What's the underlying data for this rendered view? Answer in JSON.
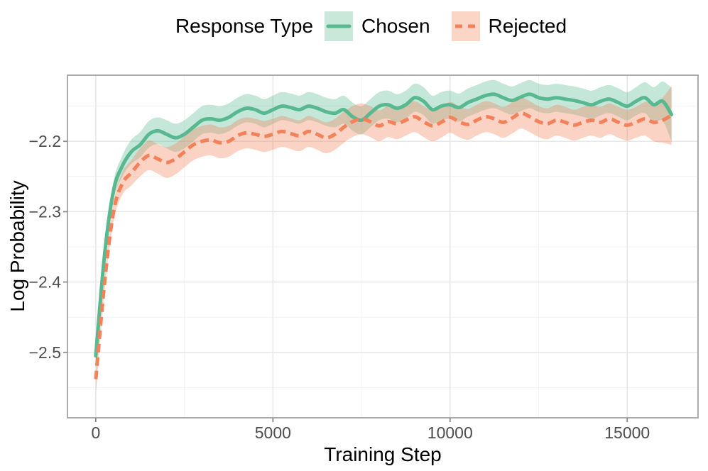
{
  "legend": {
    "title": "Response Type",
    "items": [
      {
        "label": "Chosen",
        "line_color": "#58B991",
        "band_color": "#C9E8DA",
        "dash": "solid"
      },
      {
        "label": "Rejected",
        "line_color": "#F3815A",
        "band_color": "#FBD6C6",
        "dash": "dashed"
      }
    ]
  },
  "axes": {
    "x": {
      "title": "Training Step",
      "ticks": [
        {
          "v": 0,
          "label": "0"
        },
        {
          "v": 5000,
          "label": "5000"
        },
        {
          "v": 10000,
          "label": "10000"
        },
        {
          "v": 15000,
          "label": "15000"
        }
      ],
      "minor": [
        2500,
        7500,
        12500
      ]
    },
    "y": {
      "title": "Log Probability",
      "ticks": [
        {
          "v": -2.2,
          "label": "−2.2"
        },
        {
          "v": -2.3,
          "label": "−2.3"
        },
        {
          "v": -2.4,
          "label": "−2.4"
        },
        {
          "v": -2.5,
          "label": "−2.5"
        }
      ],
      "minor": [
        -2.15,
        -2.25,
        -2.35,
        -2.45,
        -2.55
      ]
    }
  },
  "chart_data": {
    "type": "line",
    "title": "",
    "xlabel": "Training Step",
    "ylabel": "Log Probability",
    "legend_title": "Response Type",
    "legend_position": "top",
    "grid": true,
    "xlim": [
      -800,
      17000
    ],
    "ylim": [
      -2.593,
      -2.106
    ],
    "x": [
      0,
      250,
      500,
      750,
      1000,
      1250,
      1500,
      1750,
      2000,
      2250,
      2500,
      2750,
      3000,
      3250,
      3500,
      3750,
      4000,
      4250,
      4500,
      4750,
      5000,
      5250,
      5500,
      5750,
      6000,
      6250,
      6500,
      6750,
      7000,
      7250,
      7500,
      7750,
      8000,
      8250,
      8500,
      8750,
      9000,
      9250,
      9500,
      9750,
      10000,
      10250,
      10500,
      10750,
      11000,
      11250,
      11500,
      11750,
      12000,
      12250,
      12500,
      12750,
      13000,
      13250,
      13500,
      13750,
      14000,
      14250,
      14500,
      14750,
      15000,
      15250,
      15500,
      15750,
      16000,
      16250
    ],
    "series": [
      {
        "name": "Chosen",
        "color": "#58B991",
        "band_alpha": 0.35,
        "style": "solid",
        "dasharray": "",
        "values": [
          -2.505,
          -2.36,
          -2.27,
          -2.235,
          -2.215,
          -2.205,
          -2.19,
          -2.185,
          -2.19,
          -2.195,
          -2.19,
          -2.18,
          -2.17,
          -2.168,
          -2.17,
          -2.166,
          -2.158,
          -2.153,
          -2.155,
          -2.16,
          -2.155,
          -2.15,
          -2.152,
          -2.155,
          -2.15,
          -2.153,
          -2.158,
          -2.16,
          -2.155,
          -2.165,
          -2.17,
          -2.16,
          -2.15,
          -2.148,
          -2.153,
          -2.148,
          -2.138,
          -2.143,
          -2.155,
          -2.15,
          -2.148,
          -2.152,
          -2.145,
          -2.14,
          -2.135,
          -2.133,
          -2.138,
          -2.142,
          -2.137,
          -2.133,
          -2.138,
          -2.14,
          -2.138,
          -2.14,
          -2.142,
          -2.145,
          -2.148,
          -2.143,
          -2.14,
          -2.145,
          -2.15,
          -2.143,
          -2.138,
          -2.148,
          -2.143,
          -2.162
        ],
        "ci_halfwidth": [
          0.012,
          0.01,
          0.013,
          0.015,
          0.017,
          0.018,
          0.019,
          0.019,
          0.02,
          0.02,
          0.02,
          0.02,
          0.02,
          0.02,
          0.02,
          0.02,
          0.02,
          0.02,
          0.02,
          0.02,
          0.02,
          0.02,
          0.02,
          0.02,
          0.02,
          0.02,
          0.02,
          0.02,
          0.02,
          0.02,
          0.02,
          0.02,
          0.02,
          0.02,
          0.02,
          0.02,
          0.02,
          0.02,
          0.02,
          0.02,
          0.02,
          0.02,
          0.02,
          0.02,
          0.02,
          0.02,
          0.02,
          0.02,
          0.02,
          0.02,
          0.02,
          0.02,
          0.02,
          0.02,
          0.02,
          0.02,
          0.02,
          0.02,
          0.02,
          0.02,
          0.02,
          0.02,
          0.022,
          0.025,
          0.028,
          0.038
        ]
      },
      {
        "name": "Rejected",
        "color": "#F3815A",
        "band_alpha": 0.35,
        "style": "dashed",
        "dasharray": "12 7",
        "values": [
          -2.538,
          -2.4,
          -2.3,
          -2.26,
          -2.245,
          -2.23,
          -2.22,
          -2.225,
          -2.23,
          -2.225,
          -2.215,
          -2.205,
          -2.2,
          -2.198,
          -2.202,
          -2.2,
          -2.192,
          -2.188,
          -2.19,
          -2.193,
          -2.19,
          -2.186,
          -2.189,
          -2.192,
          -2.186,
          -2.19,
          -2.195,
          -2.19,
          -2.18,
          -2.172,
          -2.168,
          -2.172,
          -2.178,
          -2.172,
          -2.175,
          -2.17,
          -2.165,
          -2.172,
          -2.178,
          -2.173,
          -2.166,
          -2.172,
          -2.176,
          -2.17,
          -2.165,
          -2.168,
          -2.173,
          -2.167,
          -2.16,
          -2.165,
          -2.172,
          -2.175,
          -2.17,
          -2.173,
          -2.177,
          -2.173,
          -2.17,
          -2.173,
          -2.168,
          -2.173,
          -2.177,
          -2.173,
          -2.168,
          -2.173,
          -2.17,
          -2.163
        ],
        "ci_halfwidth": [
          0.022,
          0.012,
          0.014,
          0.016,
          0.018,
          0.02,
          0.021,
          0.021,
          0.022,
          0.022,
          0.022,
          0.022,
          0.022,
          0.022,
          0.022,
          0.022,
          0.022,
          0.022,
          0.022,
          0.022,
          0.022,
          0.022,
          0.022,
          0.022,
          0.022,
          0.022,
          0.022,
          0.022,
          0.022,
          0.022,
          0.022,
          0.022,
          0.022,
          0.022,
          0.022,
          0.022,
          0.022,
          0.022,
          0.022,
          0.022,
          0.022,
          0.022,
          0.022,
          0.022,
          0.022,
          0.022,
          0.022,
          0.022,
          0.022,
          0.022,
          0.022,
          0.022,
          0.022,
          0.022,
          0.022,
          0.022,
          0.022,
          0.022,
          0.022,
          0.022,
          0.022,
          0.022,
          0.024,
          0.027,
          0.032,
          0.042
        ]
      }
    ]
  },
  "style": {
    "panel_border_color": "#A3A3A3",
    "grid_major_color": "#E4E4E4",
    "grid_minor_color": "#F1F1F1",
    "tick_mark_color": "#8C8C8C",
    "tick_label_color": "#4D4D4D"
  }
}
